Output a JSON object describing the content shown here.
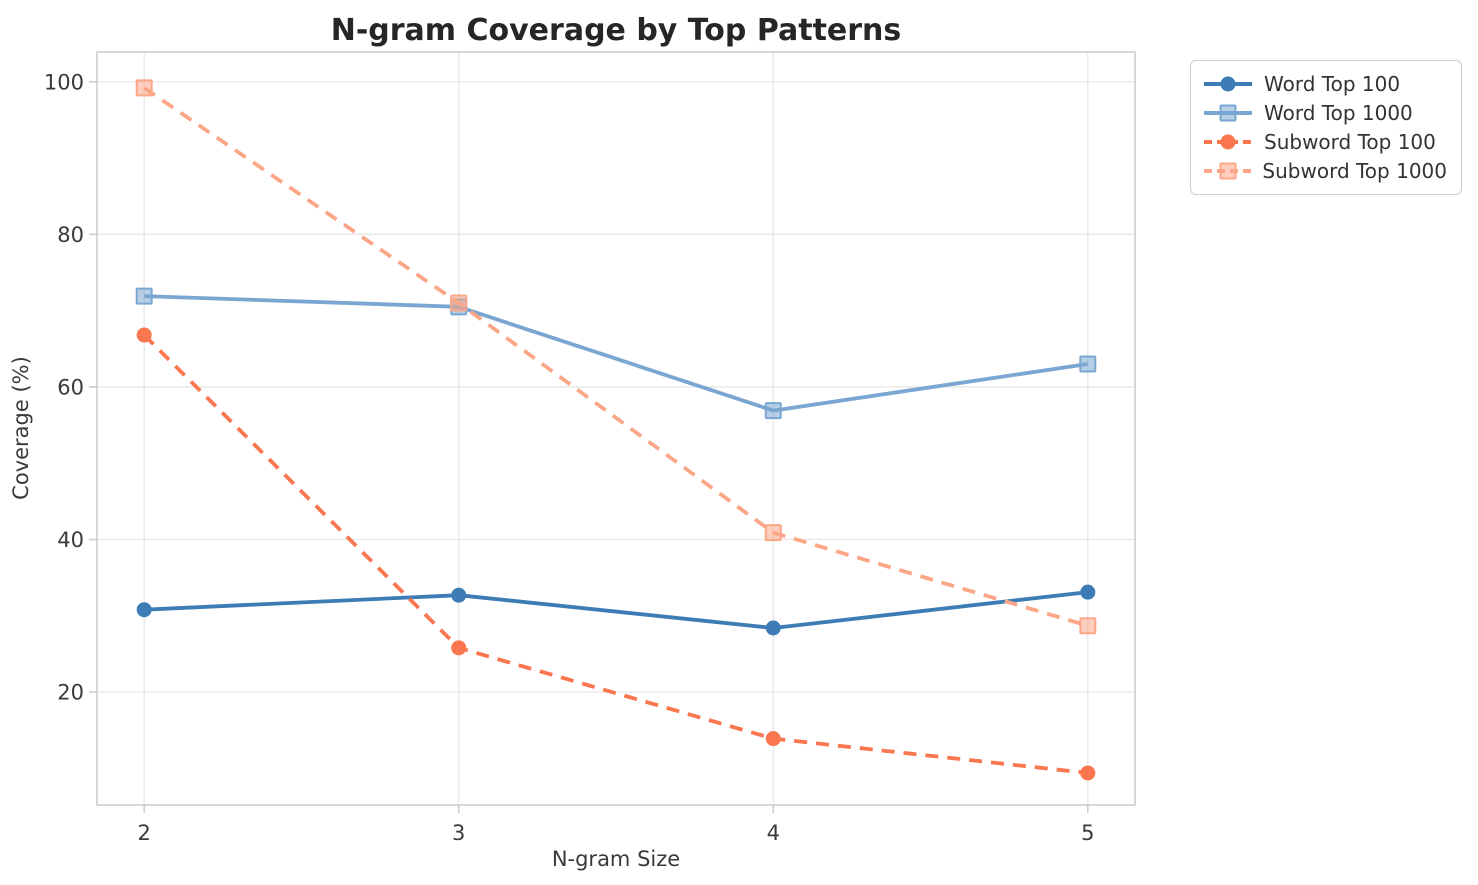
{
  "figure": {
    "background": "#ffffff"
  },
  "chart_data": {
    "type": "line",
    "title": "N-gram Coverage by Top Patterns",
    "xlabel": "N-gram Size",
    "ylabel": "Coverage (%)",
    "x": [
      2,
      3,
      4,
      5
    ],
    "series": [
      {
        "name": "Word Top 100",
        "values": [
          30.8,
          32.7,
          28.4,
          33.1
        ],
        "color": "#3e7cb5",
        "line_style": "solid",
        "marker": "circle"
      },
      {
        "name": "Word Top 1000",
        "values": [
          71.9,
          70.5,
          56.9,
          63.0
        ],
        "color": "#7aa7d2",
        "line_style": "solid",
        "marker": "square"
      },
      {
        "name": "Subword Top 100",
        "values": [
          66.8,
          25.8,
          13.9,
          9.4
        ],
        "color": "#f9764e",
        "line_style": "dashed",
        "marker": "circle"
      },
      {
        "name": "Subword Top 1000",
        "values": [
          99.2,
          71.0,
          40.9,
          28.7
        ],
        "color": "#fba687",
        "line_style": "dashed",
        "marker": "square"
      }
    ],
    "xticks": [
      "2",
      "3",
      "4",
      "5"
    ],
    "xtick_values": [
      2,
      3,
      4,
      5
    ],
    "yticks": [
      "20",
      "40",
      "60",
      "80",
      "100"
    ],
    "ytick_values": [
      20,
      40,
      60,
      80,
      100
    ],
    "xlim": [
      1.85,
      5.15
    ],
    "ylim": [
      5.2,
      103.9
    ],
    "grid": true,
    "legend_position": "upper-right-outside"
  },
  "style": {
    "grid_color": "#e7e7e7",
    "spine_color": "#cdcdcd",
    "tick_mark_color": "#cdcdcd",
    "title_color": "#262626",
    "label_color": "#3a3a3a",
    "legend_text_color": "#333333",
    "legend_border_color": "#cccccc",
    "background": "#ffffff"
  }
}
